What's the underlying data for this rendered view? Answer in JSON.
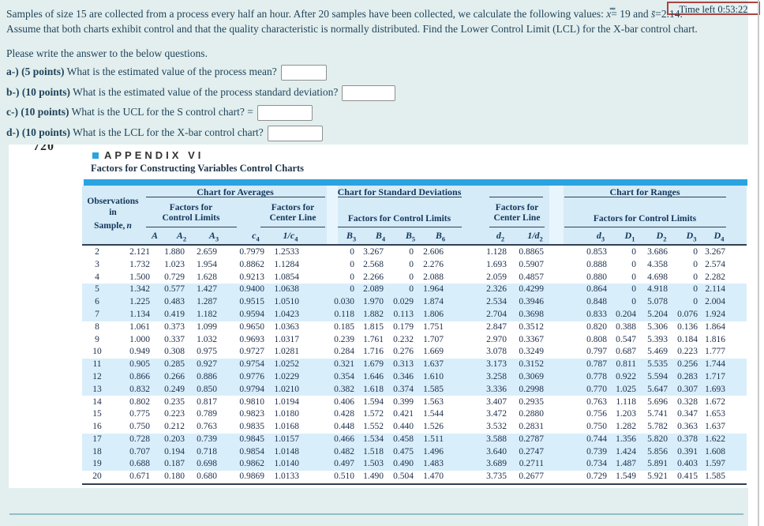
{
  "timer": {
    "text": "Time left 0:53:22"
  },
  "question": {
    "line1_pre": "Samples of size 15 are collected from a process every half an hour. After 20 samples have been collected, we calculate the following values: ",
    "xbar": "x̿",
    "line1_mid": "= 19 and ",
    "sbar": "s̄",
    "line1_post": "=2.14.",
    "line2": "Assume that both charts exhibit control and that the quality characteristic is normally distributed. Find the Lower Control Limit (LCL) for the X-bar control chart.",
    "prompt": "Please write the answer to the below questions.",
    "parts": [
      {
        "label": "a-) (5 points)",
        "text": " What is the estimated value of the process mean?"
      },
      {
        "label": "b-) (10 points)",
        "text": " What is the estimated value of the process standard deviation?"
      },
      {
        "label": "c-) (10 points)",
        "text": " What is the UCL for the S control chart? ="
      },
      {
        "label": "d-) (10 points)",
        "text": " What is the LCL for the X-bar control chart?"
      }
    ]
  },
  "appendix": {
    "page_number": "720",
    "title": "APPENDIX VI",
    "subtitle": "Factors for Constructing Variables Control Charts",
    "sections": {
      "averages": "Chart for Averages",
      "stddev": "Chart for Standard Deviations",
      "ranges": "Chart for Ranges"
    },
    "groups": {
      "avg_limits": "Factors for\nControl Limits",
      "avg_center": "Factors for\nCenter Line",
      "sd_limits": "Factors for Control Limits",
      "rng_center": "Factors for\nCenter Line",
      "rng_limits": "Factors for Control Limits"
    },
    "obs_header": [
      "Observations",
      "in",
      "Sample,"
    ],
    "obs_n": "n"
  },
  "table": {
    "symbols": [
      {
        "base": "A",
        "sub": ""
      },
      {
        "base": "A",
        "sub": "2"
      },
      {
        "base": "A",
        "sub": "3"
      },
      {
        "base": "c",
        "sub": "4"
      },
      {
        "base": "1/c",
        "sub": "4"
      },
      {
        "base": "B",
        "sub": "3"
      },
      {
        "base": "B",
        "sub": "4"
      },
      {
        "base": "B",
        "sub": "5"
      },
      {
        "base": "B",
        "sub": "6"
      },
      {
        "base": "d",
        "sub": "2"
      },
      {
        "base": "1/d",
        "sub": "2"
      },
      {
        "base": "d",
        "sub": "3"
      },
      {
        "base": "D",
        "sub": "1"
      },
      {
        "base": "D",
        "sub": "2"
      },
      {
        "base": "D",
        "sub": "3"
      },
      {
        "base": "D",
        "sub": "4"
      }
    ],
    "rows": [
      [
        "2",
        "2.121",
        "1.880",
        "2.659",
        "0.7979",
        "1.2533",
        "0",
        "3.267",
        "0",
        "2.606",
        "1.128",
        "0.8865",
        "0.853",
        "0",
        "3.686",
        "0",
        "3.267"
      ],
      [
        "3",
        "1.732",
        "1.023",
        "1.954",
        "0.8862",
        "1.1284",
        "0",
        "2.568",
        "0",
        "2.276",
        "1.693",
        "0.5907",
        "0.888",
        "0",
        "4.358",
        "0",
        "2.574"
      ],
      [
        "4",
        "1.500",
        "0.729",
        "1.628",
        "0.9213",
        "1.0854",
        "0",
        "2.266",
        "0",
        "2.088",
        "2.059",
        "0.4857",
        "0.880",
        "0",
        "4.698",
        "0",
        "2.282"
      ],
      [
        "5",
        "1.342",
        "0.577",
        "1.427",
        "0.9400",
        "1.0638",
        "0",
        "2.089",
        "0",
        "1.964",
        "2.326",
        "0.4299",
        "0.864",
        "0",
        "4.918",
        "0",
        "2.114"
      ],
      [
        "6",
        "1.225",
        "0.483",
        "1.287",
        "0.9515",
        "1.0510",
        "0.030",
        "1.970",
        "0.029",
        "1.874",
        "2.534",
        "0.3946",
        "0.848",
        "0",
        "5.078",
        "0",
        "2.004"
      ],
      [
        "7",
        "1.134",
        "0.419",
        "1.182",
        "0.9594",
        "1.0423",
        "0.118",
        "1.882",
        "0.113",
        "1.806",
        "2.704",
        "0.3698",
        "0.833",
        "0.204",
        "5.204",
        "0.076",
        "1.924"
      ],
      [
        "8",
        "1.061",
        "0.373",
        "1.099",
        "0.9650",
        "1.0363",
        "0.185",
        "1.815",
        "0.179",
        "1.751",
        "2.847",
        "0.3512",
        "0.820",
        "0.388",
        "5.306",
        "0.136",
        "1.864"
      ],
      [
        "9",
        "1.000",
        "0.337",
        "1.032",
        "0.9693",
        "1.0317",
        "0.239",
        "1.761",
        "0.232",
        "1.707",
        "2.970",
        "0.3367",
        "0.808",
        "0.547",
        "5.393",
        "0.184",
        "1.816"
      ],
      [
        "10",
        "0.949",
        "0.308",
        "0.975",
        "0.9727",
        "1.0281",
        "0.284",
        "1.716",
        "0.276",
        "1.669",
        "3.078",
        "0.3249",
        "0.797",
        "0.687",
        "5.469",
        "0.223",
        "1.777"
      ],
      [
        "11",
        "0.905",
        "0.285",
        "0.927",
        "0.9754",
        "1.0252",
        "0.321",
        "1.679",
        "0.313",
        "1.637",
        "3.173",
        "0.3152",
        "0.787",
        "0.811",
        "5.535",
        "0.256",
        "1.744"
      ],
      [
        "12",
        "0.866",
        "0.266",
        "0.886",
        "0.9776",
        "1.0229",
        "0.354",
        "1.646",
        "0.346",
        "1.610",
        "3.258",
        "0.3069",
        "0.778",
        "0.922",
        "5.594",
        "0.283",
        "1.717"
      ],
      [
        "13",
        "0.832",
        "0.249",
        "0.850",
        "0.9794",
        "1.0210",
        "0.382",
        "1.618",
        "0.374",
        "1.585",
        "3.336",
        "0.2998",
        "0.770",
        "1.025",
        "5.647",
        "0.307",
        "1.693"
      ],
      [
        "14",
        "0.802",
        "0.235",
        "0.817",
        "0.9810",
        "1.0194",
        "0.406",
        "1.594",
        "0.399",
        "1.563",
        "3.407",
        "0.2935",
        "0.763",
        "1.118",
        "5.696",
        "0.328",
        "1.672"
      ],
      [
        "15",
        "0.775",
        "0.223",
        "0.789",
        "0.9823",
        "1.0180",
        "0.428",
        "1.572",
        "0.421",
        "1.544",
        "3.472",
        "0.2880",
        "0.756",
        "1.203",
        "5.741",
        "0.347",
        "1.653"
      ],
      [
        "16",
        "0.750",
        "0.212",
        "0.763",
        "0.9835",
        "1.0168",
        "0.448",
        "1.552",
        "0.440",
        "1.526",
        "3.532",
        "0.2831",
        "0.750",
        "1.282",
        "5.782",
        "0.363",
        "1.637"
      ],
      [
        "17",
        "0.728",
        "0.203",
        "0.739",
        "0.9845",
        "1.0157",
        "0.466",
        "1.534",
        "0.458",
        "1.511",
        "3.588",
        "0.2787",
        "0.744",
        "1.356",
        "5.820",
        "0.378",
        "1.622"
      ],
      [
        "18",
        "0.707",
        "0.194",
        "0.718",
        "0.9854",
        "1.0148",
        "0.482",
        "1.518",
        "0.475",
        "1.496",
        "3.640",
        "0.2747",
        "0.739",
        "1.424",
        "5.856",
        "0.391",
        "1.608"
      ],
      [
        "19",
        "0.688",
        "0.187",
        "0.698",
        "0.9862",
        "1.0140",
        "0.497",
        "1.503",
        "0.490",
        "1.483",
        "3.689",
        "0.2711",
        "0.734",
        "1.487",
        "5.891",
        "0.403",
        "1.597"
      ],
      [
        "20",
        "0.671",
        "0.180",
        "0.680",
        "0.9869",
        "1.0133",
        "0.510",
        "1.490",
        "0.504",
        "1.470",
        "3.735",
        "0.2677",
        "0.729",
        "1.549",
        "5.921",
        "0.415",
        "1.585"
      ]
    ],
    "highlight_ns": [
      "5",
      "6",
      "7",
      "11",
      "12",
      "13",
      "17",
      "18",
      "19"
    ]
  },
  "colors": {
    "accent_blue": "#2aa3e0",
    "header_blue": "#d5ebf8",
    "highlight_blue": "#d9eefb",
    "timer_border": "#a94441",
    "panel_background": "#e2efee",
    "table_ink": "#1c2d49"
  }
}
